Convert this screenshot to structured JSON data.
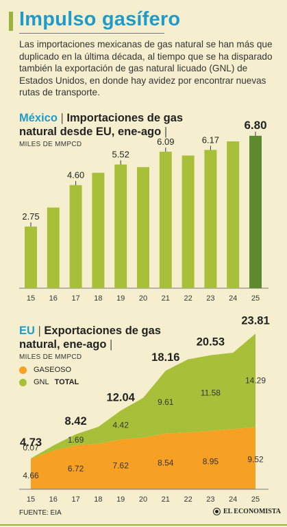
{
  "header": {
    "title": "Impulso gasífero",
    "intro": "Las importaciones mexicanas de gas natural se han más que duplicado en la última década, al tiempo que se ha disparado también la exportación de gas natural licuado (GNL) de Estados Unidos, en donde hay avidez por encontrar nuevas rutas de transporte."
  },
  "mexico": {
    "country": "México",
    "title": "Importaciones de gas natural desde EU, ene-ago",
    "unit": "MILES DE MMPCD"
  },
  "eu": {
    "country": "EU",
    "title": "Exportaciones de gas natural, ene-ago",
    "unit": "MILES DE MMPCD",
    "legend": {
      "gaseoso": "GASEOSO",
      "gnl": "GNL",
      "total": "TOTAL"
    }
  },
  "footer": {
    "source": "FUENTE: EIA",
    "brand": "EL ECONOMISTA"
  },
  "colors": {
    "bar": "#a8c039",
    "bar_highlight": "#5d8a2c",
    "gaseoso": "#f6a024",
    "gnl": "#a8c039",
    "accent": "#1f9bc9",
    "background": "#f6efcf"
  },
  "chart_data": [
    {
      "type": "bar",
      "categories": [
        "15",
        "16",
        "17",
        "18",
        "19",
        "20",
        "21",
        "22",
        "23",
        "24",
        "25"
      ],
      "values": [
        2.75,
        3.6,
        4.6,
        5.15,
        5.52,
        5.4,
        6.09,
        5.92,
        6.17,
        6.55,
        6.8
      ],
      "labels": [
        "2.75",
        "",
        "4.60",
        "",
        "5.52",
        "",
        "6.09",
        "",
        "6.17",
        "",
        "6.80"
      ],
      "highlight_index": 10,
      "ylim": [
        0,
        7.5
      ],
      "grid": false
    },
    {
      "type": "area",
      "categories": [
        "15",
        "16",
        "17",
        "18",
        "19",
        "20",
        "21",
        "22",
        "23",
        "24",
        "25"
      ],
      "stacked": true,
      "ylim": [
        0,
        25
      ],
      "series": [
        {
          "name": "GASEOSO",
          "values": [
            4.66,
            5.9,
            6.72,
            6.95,
            7.62,
            7.9,
            8.54,
            8.7,
            8.95,
            9.2,
            9.52
          ],
          "labels": [
            "4.66",
            "",
            "6.72",
            "",
            "7.62",
            "",
            "8.54",
            "",
            "8.95",
            "",
            "9.52"
          ]
        },
        {
          "name": "GNL",
          "values": [
            0.07,
            0.8,
            1.69,
            2.6,
            4.42,
            6.1,
            9.61,
            11.2,
            11.58,
            11.7,
            14.29
          ],
          "labels": [
            "0.07",
            "",
            "1.69",
            "",
            "4.42",
            "",
            "9.61",
            "",
            "11.58",
            "",
            "14.29"
          ]
        }
      ],
      "totals": [
        4.73,
        6.7,
        8.42,
        9.55,
        12.04,
        14.0,
        18.16,
        19.9,
        20.53,
        20.9,
        23.81
      ],
      "total_labels": [
        "4.73",
        "",
        "8.42",
        "",
        "12.04",
        "",
        "18.16",
        "",
        "20.53",
        "",
        "23.81"
      ],
      "grid": false
    }
  ]
}
